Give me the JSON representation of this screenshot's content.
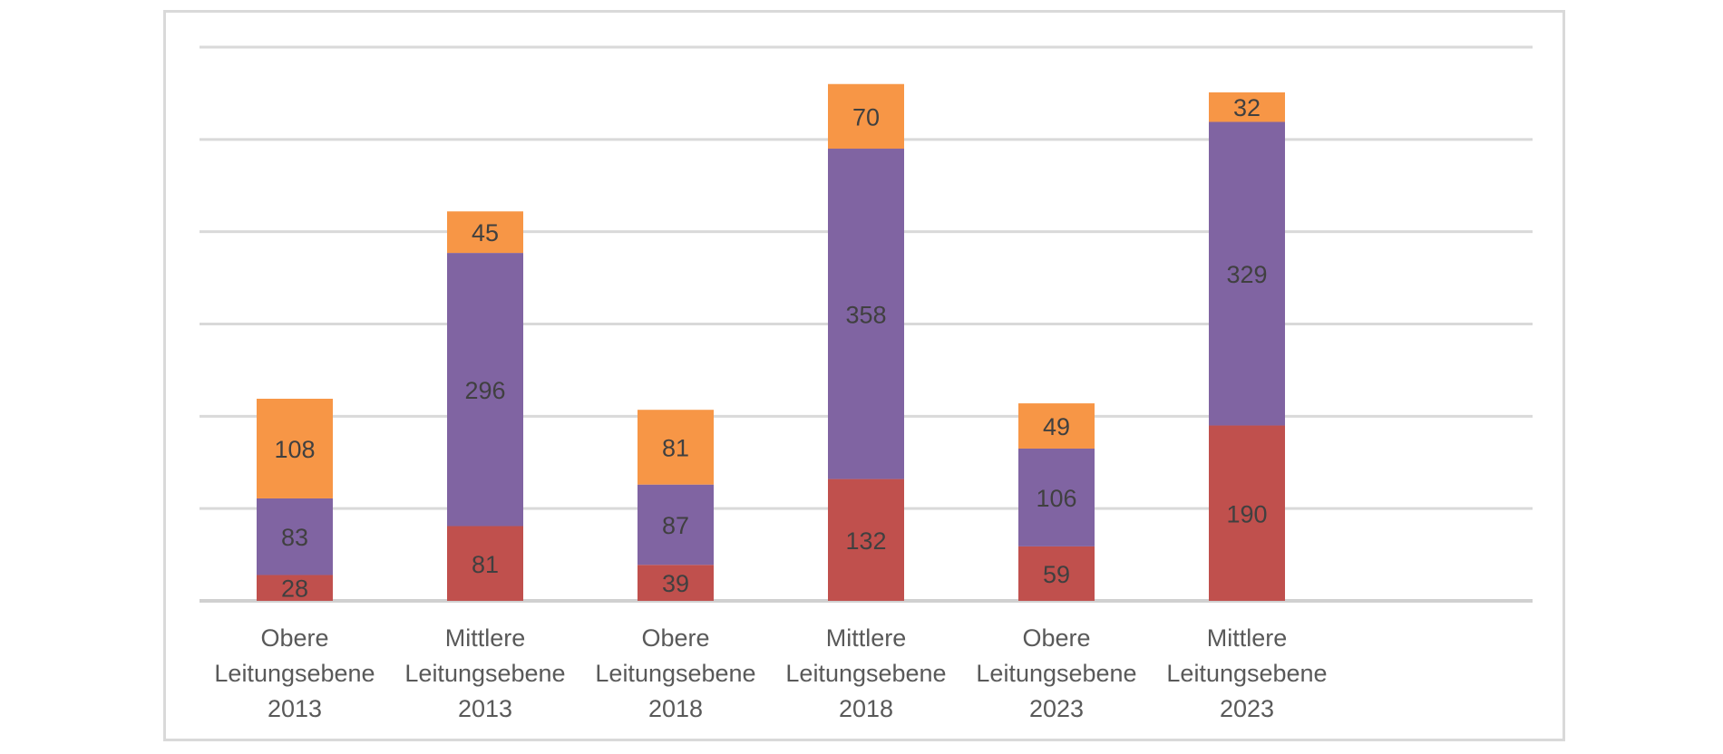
{
  "chart_data": {
    "type": "bar",
    "stacked": true,
    "categories": [
      [
        "Obere",
        "Leitungsebene",
        "2013"
      ],
      [
        "Mittlere",
        "Leitungsebene",
        "2013"
      ],
      [
        "Obere",
        "Leitungsebene",
        "2018"
      ],
      [
        "Mittlere",
        "Leitungsebene",
        "2018"
      ],
      [
        "Obere",
        "Leitungsebene",
        "2023"
      ],
      [
        "Mittlere",
        "Leitungsebene",
        "2023"
      ]
    ],
    "series": [
      {
        "color": "#c0504d",
        "values": [
          28,
          81,
          39,
          132,
          59,
          190
        ]
      },
      {
        "color": "#8064a2",
        "values": [
          83,
          296,
          87,
          358,
          106,
          329
        ]
      },
      {
        "color": "#f79646",
        "values": [
          108,
          45,
          81,
          70,
          49,
          32
        ]
      }
    ],
    "ylim": [
      0,
      600
    ],
    "gridline_step": 100,
    "grid": true,
    "legend": "none",
    "axis_tick_labels_y": false
  }
}
